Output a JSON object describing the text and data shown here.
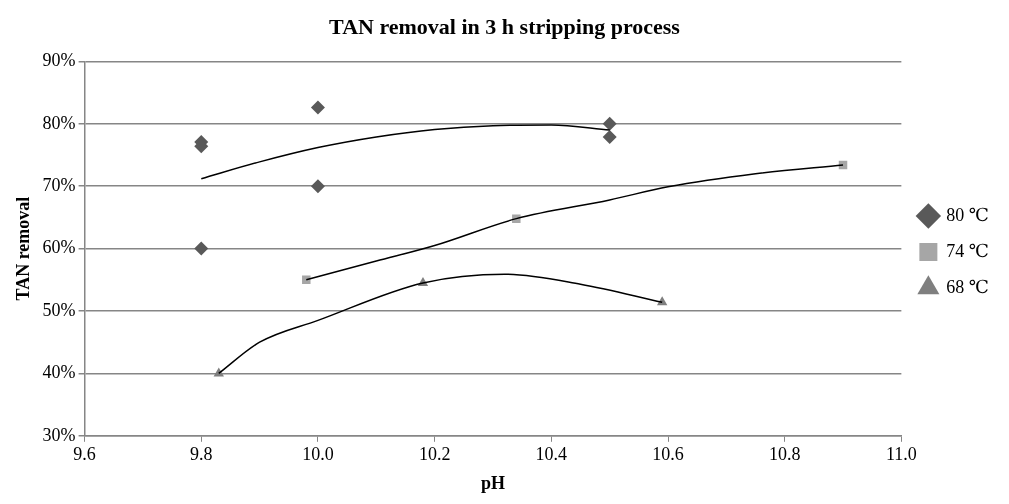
{
  "chart_data": {
    "type": "scatter",
    "title": "TAN removal in 3 h stripping process",
    "xlabel": "pH",
    "ylabel": "TAN removal",
    "xlim": [
      9.6,
      11.0
    ],
    "xticks": [
      {
        "value": 9.6,
        "label": "9.6"
      },
      {
        "value": 9.8,
        "label": "9.8"
      },
      {
        "value": 10.0,
        "label": "10.0"
      },
      {
        "value": 10.2,
        "label": "10.2"
      },
      {
        "value": 10.4,
        "label": "10.4"
      },
      {
        "value": 10.6,
        "label": "10.6"
      },
      {
        "value": 10.8,
        "label": "10.8"
      },
      {
        "value": 11.0,
        "label": "11.0"
      }
    ],
    "ylim": [
      30,
      90
    ],
    "yticks": [
      {
        "value": 30,
        "label": "30%"
      },
      {
        "value": 40,
        "label": "40%"
      },
      {
        "value": 50,
        "label": "50%"
      },
      {
        "value": 60,
        "label": "60%"
      },
      {
        "value": 70,
        "label": "70%"
      },
      {
        "value": 80,
        "label": "80%"
      },
      {
        "value": 90,
        "label": "90%"
      }
    ],
    "grid": "y",
    "legend": "right",
    "series": [
      {
        "name": "80 ℃",
        "color": "#595959",
        "marker": "diamond",
        "x": [
          9.8,
          9.8,
          9.8,
          10.0,
          10.0,
          10.5,
          10.5
        ],
        "values": [
          77.1,
          76.4,
          60,
          82.6,
          70,
          80,
          77.9
        ]
      },
      {
        "name": "74 ℃",
        "color": "#a6a6a6",
        "marker": "square",
        "x": [
          9.98,
          10.34,
          10.9
        ],
        "values": [
          55,
          64.8,
          73.4
        ]
      },
      {
        "name": "68 ℃",
        "color": "#7f7f7f",
        "marker": "triangle",
        "x": [
          9.83,
          10.18,
          10.59
        ],
        "values": [
          40,
          54.5,
          51.4
        ]
      },
      {
        "type": "line",
        "color": "#000000",
        "marker": "none",
        "x": [
          9.8,
          9.9,
          10.0,
          10.1,
          10.2,
          10.3,
          10.4,
          10.5
        ],
        "values": [
          71.2,
          73.9,
          76.2,
          77.9,
          79.1,
          79.7,
          79.8,
          79.0
        ]
      },
      {
        "type": "line",
        "color": "#000000",
        "marker": "none",
        "x": [
          9.98,
          10.1,
          10.2,
          10.34,
          10.5,
          10.6,
          10.75,
          10.9
        ],
        "values": [
          55,
          58,
          60.5,
          64.8,
          67.8,
          69.9,
          72,
          73.4
        ]
      },
      {
        "type": "line",
        "color": "#000000",
        "marker": "none",
        "x": [
          9.83,
          9.9,
          10.0,
          10.18,
          10.32,
          10.45,
          10.59
        ],
        "values": [
          40,
          45,
          48.5,
          54.5,
          55.9,
          54.3,
          51.4
        ]
      }
    ]
  }
}
